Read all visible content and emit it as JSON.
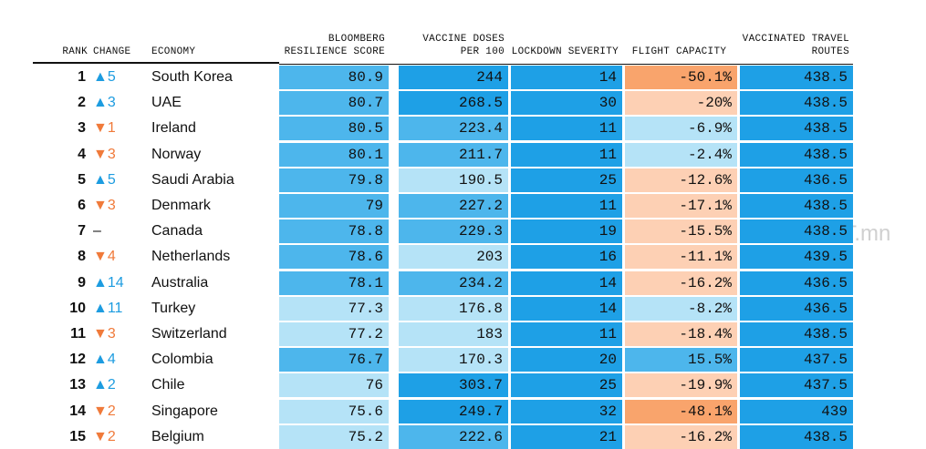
{
  "table": {
    "headers": [
      "RANK",
      "CHANGE",
      "ECONOMY",
      "BLOOMBERG RESILIENCE SCORE",
      "VACCINE DOSES PER 100",
      "LOCKDOWN SEVERITY",
      "FLIGHT CAPACITY",
      "VACCINATED TRAVEL ROUTES"
    ],
    "rows": [
      [
        1,
        "▲5",
        "South Korea",
        "80.9",
        "244",
        "14",
        "-50.1%",
        "438.5"
      ],
      [
        2,
        "▲3",
        "UAE",
        "80.7",
        "268.5",
        "30",
        "-20%",
        "438.5"
      ],
      [
        3,
        "▼1",
        "Ireland",
        "80.5",
        "223.4",
        "11",
        "-6.9%",
        "438.5"
      ],
      [
        4,
        "▼3",
        "Norway",
        "80.1",
        "211.7",
        "11",
        "-2.4%",
        "438.5"
      ],
      [
        5,
        "▲5",
        "Saudi Arabia",
        "79.8",
        "190.5",
        "25",
        "-12.6%",
        "436.5"
      ],
      [
        6,
        "▼3",
        "Denmark",
        "79",
        "227.2",
        "11",
        "-17.1%",
        "438.5"
      ],
      [
        7,
        "–",
        "Canada",
        "78.8",
        "229.3",
        "19",
        "-15.5%",
        "438.5"
      ],
      [
        8,
        "▼4",
        "Netherlands",
        "78.6",
        "203",
        "16",
        "-11.1%",
        "439.5"
      ],
      [
        9,
        "▲14",
        "Australia",
        "78.1",
        "234.2",
        "14",
        "-16.2%",
        "436.5"
      ],
      [
        10,
        "▲11",
        "Turkey",
        "77.3",
        "176.8",
        "14",
        "-8.2%",
        "436.5"
      ],
      [
        11,
        "▼3",
        "Switzerland",
        "77.2",
        "183",
        "11",
        "-18.4%",
        "438.5"
      ],
      [
        12,
        "▲4",
        "Colombia",
        "76.7",
        "170.3",
        "20",
        "15.5%",
        "437.5"
      ],
      [
        13,
        "▲2",
        "Chile",
        "76",
        "303.7",
        "25",
        "-19.9%",
        "437.5"
      ],
      [
        14,
        "▼2",
        "Singapore",
        "75.6",
        "249.7",
        "32",
        "-48.1%",
        "439"
      ],
      [
        15,
        "▼2",
        "Belgium",
        "75.2",
        "222.6",
        "21",
        "-16.2%",
        "438.5"
      ]
    ],
    "change_colors": [
      "#1d9ce0",
      "#1d9ce0",
      "#f07a3a",
      "#f07a3a",
      "#1d9ce0",
      "#f07a3a",
      "#111111",
      "#f07a3a",
      "#1d9ce0",
      "#1d9ce0",
      "#f07a3a",
      "#1d9ce0",
      "#1d9ce0",
      "#f07a3a",
      "#f07a3a"
    ],
    "cell_colors": [
      [
        "#4db6ec",
        "#1ea0e6",
        "#1ea0e6",
        "#f9a46c",
        "#1ea0e6"
      ],
      [
        "#4db6ec",
        "#1ea0e6",
        "#1ea0e6",
        "#fdd0b4",
        "#1ea0e6"
      ],
      [
        "#4db6ec",
        "#4db6ec",
        "#1ea0e6",
        "#b5e3f7",
        "#1ea0e6"
      ],
      [
        "#4db6ec",
        "#4db6ec",
        "#1ea0e6",
        "#b5e3f7",
        "#1ea0e6"
      ],
      [
        "#4db6ec",
        "#b5e3f7",
        "#1ea0e6",
        "#fdd0b4",
        "#1ea0e6"
      ],
      [
        "#4db6ec",
        "#4db6ec",
        "#1ea0e6",
        "#fdd0b4",
        "#1ea0e6"
      ],
      [
        "#4db6ec",
        "#4db6ec",
        "#1ea0e6",
        "#fdd0b4",
        "#1ea0e6"
      ],
      [
        "#4db6ec",
        "#b5e3f7",
        "#1ea0e6",
        "#fdd0b4",
        "#1ea0e6"
      ],
      [
        "#4db6ec",
        "#4db6ec",
        "#1ea0e6",
        "#fdd0b4",
        "#1ea0e6"
      ],
      [
        "#b5e3f7",
        "#b5e3f7",
        "#1ea0e6",
        "#b5e3f7",
        "#1ea0e6"
      ],
      [
        "#b5e3f7",
        "#b5e3f7",
        "#1ea0e6",
        "#fdd0b4",
        "#1ea0e6"
      ],
      [
        "#4db6ec",
        "#b5e3f7",
        "#1ea0e6",
        "#4db6ec",
        "#1ea0e6"
      ],
      [
        "#b5e3f7",
        "#1ea0e6",
        "#1ea0e6",
        "#fdd0b4",
        "#1ea0e6"
      ],
      [
        "#b5e3f7",
        "#1ea0e6",
        "#1ea0e6",
        "#f9a46c",
        "#1ea0e6"
      ],
      [
        "#b5e3f7",
        "#4db6ec",
        "#1ea0e6",
        "#fdd0b4",
        "#1ea0e6"
      ]
    ]
  },
  "watermark": "www.iFACT.mn"
}
